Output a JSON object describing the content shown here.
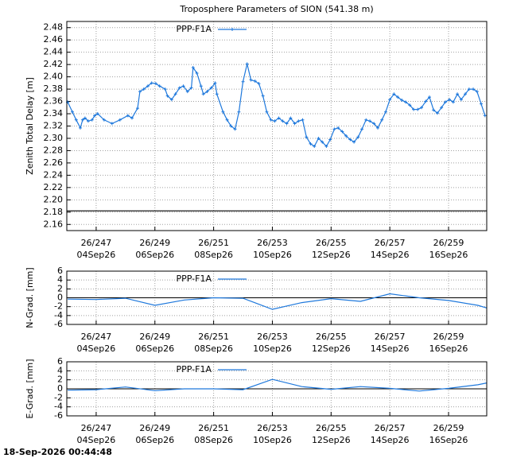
{
  "chart_data": [
    {
      "type": "line",
      "title": "Troposphere Parameters of SION (541.38 m)",
      "ylabel": "Zenith Total Delay [m]",
      "grid": true,
      "legend": "top-center",
      "xlim": [
        246,
        260.3
      ],
      "ylim": [
        2.15,
        2.49
      ],
      "yticks": [
        2.16,
        2.18,
        {
          "value": 2.2,
          "label": "2.20"
        },
        2.22,
        2.24,
        2.26,
        2.28,
        {
          "value": 2.3,
          "label": "2.30"
        },
        2.32,
        2.34,
        2.36,
        2.38,
        {
          "value": 2.4,
          "label": "2.40"
        },
        2.42,
        2.44,
        2.46,
        2.48
      ],
      "xticks": [
        {
          "value": 247,
          "label": "26/247",
          "date": "04Sep26"
        },
        {
          "value": 249,
          "label": "26/249",
          "date": "06Sep26"
        },
        {
          "value": 251,
          "label": "26/251",
          "date": "08Sep26"
        },
        {
          "value": 253,
          "label": "26/253",
          "date": "10Sep26"
        },
        {
          "value": 255,
          "label": "26/255",
          "date": "12Sep26"
        },
        {
          "value": 257,
          "label": "26/257",
          "date": "14Sep26"
        },
        {
          "value": 259,
          "label": "26/259",
          "date": "16Sep26"
        }
      ],
      "x": [
        246.03,
        246.19,
        246.32,
        246.46,
        246.54,
        246.62,
        246.73,
        246.86,
        246.95,
        247.05,
        247.27,
        247.54,
        247.81,
        248.08,
        248.22,
        248.41,
        248.49,
        248.62,
        248.76,
        248.89,
        249.03,
        249.16,
        249.35,
        249.43,
        249.57,
        249.7,
        249.84,
        249.97,
        250.11,
        250.24,
        250.3,
        250.43,
        250.57,
        250.65,
        250.78,
        250.92,
        251.05,
        251.11,
        251.32,
        251.46,
        251.59,
        251.73,
        251.86,
        252.0,
        252.14,
        252.27,
        252.41,
        252.54,
        252.68,
        252.81,
        252.95,
        253.08,
        253.22,
        253.35,
        253.49,
        253.62,
        253.76,
        253.89,
        254.03,
        254.16,
        254.3,
        254.43,
        254.57,
        254.7,
        254.84,
        254.97,
        255.11,
        255.24,
        255.38,
        255.51,
        255.65,
        255.78,
        255.92,
        256.05,
        256.19,
        256.32,
        256.46,
        256.59,
        256.73,
        256.86,
        257.0,
        257.14,
        257.27,
        257.41,
        257.54,
        257.68,
        257.81,
        257.95,
        258.08,
        258.22,
        258.35,
        258.49,
        258.62,
        258.76,
        258.89,
        259.03,
        259.16,
        259.3,
        259.43,
        259.57,
        259.7,
        259.84,
        259.97,
        260.11,
        260.24
      ],
      "series": [
        {
          "name": "PPP-F1A",
          "color": "#1e78dc",
          "marker": "plus",
          "values": [
            2.359,
            2.343,
            2.33,
            2.317,
            2.33,
            2.333,
            2.328,
            2.33,
            2.337,
            2.34,
            2.33,
            2.324,
            2.33,
            2.337,
            2.333,
            2.349,
            2.376,
            2.38,
            2.385,
            2.39,
            2.389,
            2.385,
            2.38,
            2.369,
            2.363,
            2.372,
            2.382,
            2.385,
            2.376,
            2.382,
            2.415,
            2.406,
            2.385,
            2.372,
            2.376,
            2.382,
            2.39,
            2.372,
            2.343,
            2.33,
            2.32,
            2.315,
            2.343,
            2.392,
            2.421,
            2.395,
            2.393,
            2.389,
            2.369,
            2.343,
            2.33,
            2.328,
            2.333,
            2.328,
            2.324,
            2.333,
            2.324,
            2.328,
            2.33,
            2.302,
            2.291,
            2.287,
            2.3,
            2.294,
            2.287,
            2.298,
            2.315,
            2.317,
            2.311,
            2.304,
            2.298,
            2.294,
            2.302,
            2.315,
            2.33,
            2.328,
            2.324,
            2.317,
            2.33,
            2.343,
            2.363,
            2.372,
            2.367,
            2.362,
            2.359,
            2.354,
            2.347,
            2.347,
            2.35,
            2.36,
            2.367,
            2.346,
            2.341,
            2.35,
            2.359,
            2.363,
            2.359,
            2.372,
            2.363,
            2.372,
            2.38,
            2.38,
            2.376,
            2.356,
            2.337
          ]
        },
        {
          "color": "#000000",
          "x": [
            246,
            260.3
          ],
          "values": [
            2.182,
            2.182
          ]
        }
      ]
    },
    {
      "type": "line",
      "ylabel": "N-Grad. [mm]",
      "grid": true,
      "legend": "top-center",
      "zero_axis": true,
      "xlim": [
        246,
        260.3
      ],
      "ylim": [
        -6,
        6
      ],
      "yticks": [
        -6,
        -4,
        -2,
        0,
        2,
        4,
        6
      ],
      "xticks": [
        {
          "value": 247,
          "label": "26/247",
          "date": "04Sep26"
        },
        {
          "value": 249,
          "label": "26/249",
          "date": "06Sep26"
        },
        {
          "value": 251,
          "label": "26/251",
          "date": "08Sep26"
        },
        {
          "value": 253,
          "label": "26/253",
          "date": "10Sep26"
        },
        {
          "value": 255,
          "label": "26/255",
          "date": "12Sep26"
        },
        {
          "value": 257,
          "label": "26/257",
          "date": "14Sep26"
        },
        {
          "value": 259,
          "label": "26/259",
          "date": "16Sep26"
        }
      ],
      "x": [
        246.03,
        247,
        248,
        249,
        250,
        251,
        252,
        253,
        254,
        255,
        256,
        257,
        258,
        259,
        260,
        260.3
      ],
      "series": [
        {
          "name": "PPP-F1A",
          "color": "#1e78dc",
          "values": [
            -0.3,
            -0.4,
            -0.1,
            -1.7,
            -0.5,
            0,
            -0.1,
            -2.6,
            -1.1,
            -0.2,
            -0.8,
            0.9,
            0,
            -0.6,
            -1.7,
            -2.3
          ]
        }
      ]
    },
    {
      "type": "line",
      "ylabel": "E-Grad. [mm]",
      "grid": true,
      "legend": "top-center",
      "zero_axis": true,
      "xlim": [
        246,
        260.3
      ],
      "ylim": [
        -6,
        6
      ],
      "yticks": [
        -6,
        -4,
        -2,
        0,
        2,
        4,
        6
      ],
      "xticks": [
        {
          "value": 247,
          "label": "26/247",
          "date": "04Sep26"
        },
        {
          "value": 249,
          "label": "26/249",
          "date": "06Sep26"
        },
        {
          "value": 251,
          "label": "26/251",
          "date": "08Sep26"
        },
        {
          "value": 253,
          "label": "26/253",
          "date": "10Sep26"
        },
        {
          "value": 255,
          "label": "26/255",
          "date": "12Sep26"
        },
        {
          "value": 257,
          "label": "26/257",
          "date": "14Sep26"
        },
        {
          "value": 259,
          "label": "26/259",
          "date": "16Sep26"
        }
      ],
      "x": [
        246.03,
        247,
        248,
        249,
        250,
        251,
        252,
        253,
        254,
        255,
        256,
        257,
        258,
        259,
        260,
        260.3
      ],
      "series": [
        {
          "name": "PPP-F1A",
          "color": "#1e78dc",
          "values": [
            -0.3,
            -0.2,
            0.4,
            -0.4,
            0,
            0,
            -0.2,
            2.1,
            0.5,
            -0.1,
            0.5,
            0.1,
            -0.5,
            0.1,
            0.9,
            1.3
          ]
        }
      ]
    }
  ],
  "footer": "18-Sep-2026 00:44:48"
}
